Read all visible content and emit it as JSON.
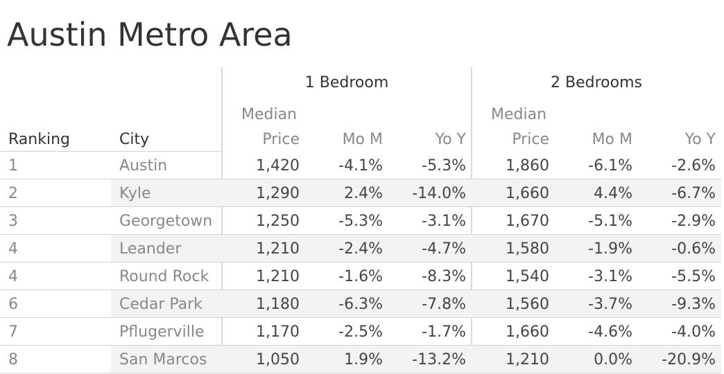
{
  "title": "Austin Metro Area",
  "headers": {
    "ranking": "Ranking",
    "city": "City",
    "groups": [
      "1 Bedroom",
      "2 Bedrooms"
    ],
    "median_line1": "Median",
    "median_line2": "Price",
    "mom": "Mo M",
    "yoy": "Yo Y"
  },
  "chart_data": {
    "type": "table",
    "title": "Austin Metro Area",
    "columns": [
      "Ranking",
      "City",
      "1 Bedroom Median Price",
      "1 Bedroom Mo M",
      "1 Bedroom Yo Y",
      "2 Bedrooms Median Price",
      "2 Bedrooms Mo M",
      "2 Bedrooms Yo Y"
    ],
    "rows": [
      {
        "rank": "1",
        "city": "Austin",
        "b1_price": "1,420",
        "b1_mom": "-4.1%",
        "b1_yoy": "-5.3%",
        "b2_price": "1,860",
        "b2_mom": "-6.1%",
        "b2_yoy": "-2.6%"
      },
      {
        "rank": "2",
        "city": "Kyle",
        "b1_price": "1,290",
        "b1_mom": "2.4%",
        "b1_yoy": "-14.0%",
        "b2_price": "1,660",
        "b2_mom": "4.4%",
        "b2_yoy": "-6.7%"
      },
      {
        "rank": "3",
        "city": "Georgetown",
        "b1_price": "1,250",
        "b1_mom": "-5.3%",
        "b1_yoy": "-3.1%",
        "b2_price": "1,670",
        "b2_mom": "-5.1%",
        "b2_yoy": "-2.9%"
      },
      {
        "rank": "4",
        "city": "Leander",
        "b1_price": "1,210",
        "b1_mom": "-2.4%",
        "b1_yoy": "-4.7%",
        "b2_price": "1,580",
        "b2_mom": "-1.9%",
        "b2_yoy": "-0.6%"
      },
      {
        "rank": "4",
        "city": "Round Rock",
        "b1_price": "1,210",
        "b1_mom": "-1.6%",
        "b1_yoy": "-8.3%",
        "b2_price": "1,540",
        "b2_mom": "-3.1%",
        "b2_yoy": "-5.5%"
      },
      {
        "rank": "6",
        "city": "Cedar Park",
        "b1_price": "1,180",
        "b1_mom": "-6.3%",
        "b1_yoy": "-7.8%",
        "b2_price": "1,560",
        "b2_mom": "-3.7%",
        "b2_yoy": "-9.3%"
      },
      {
        "rank": "7",
        "city": "Pflugerville",
        "b1_price": "1,170",
        "b1_mom": "-2.5%",
        "b1_yoy": "-1.7%",
        "b2_price": "1,660",
        "b2_mom": "-4.6%",
        "b2_yoy": "-4.0%"
      },
      {
        "rank": "8",
        "city": "San Marcos",
        "b1_price": "1,050",
        "b1_mom": "1.9%",
        "b1_yoy": "-13.2%",
        "b2_price": "1,210",
        "b2_mom": "0.0%",
        "b2_yoy": "-20.9%"
      }
    ]
  }
}
